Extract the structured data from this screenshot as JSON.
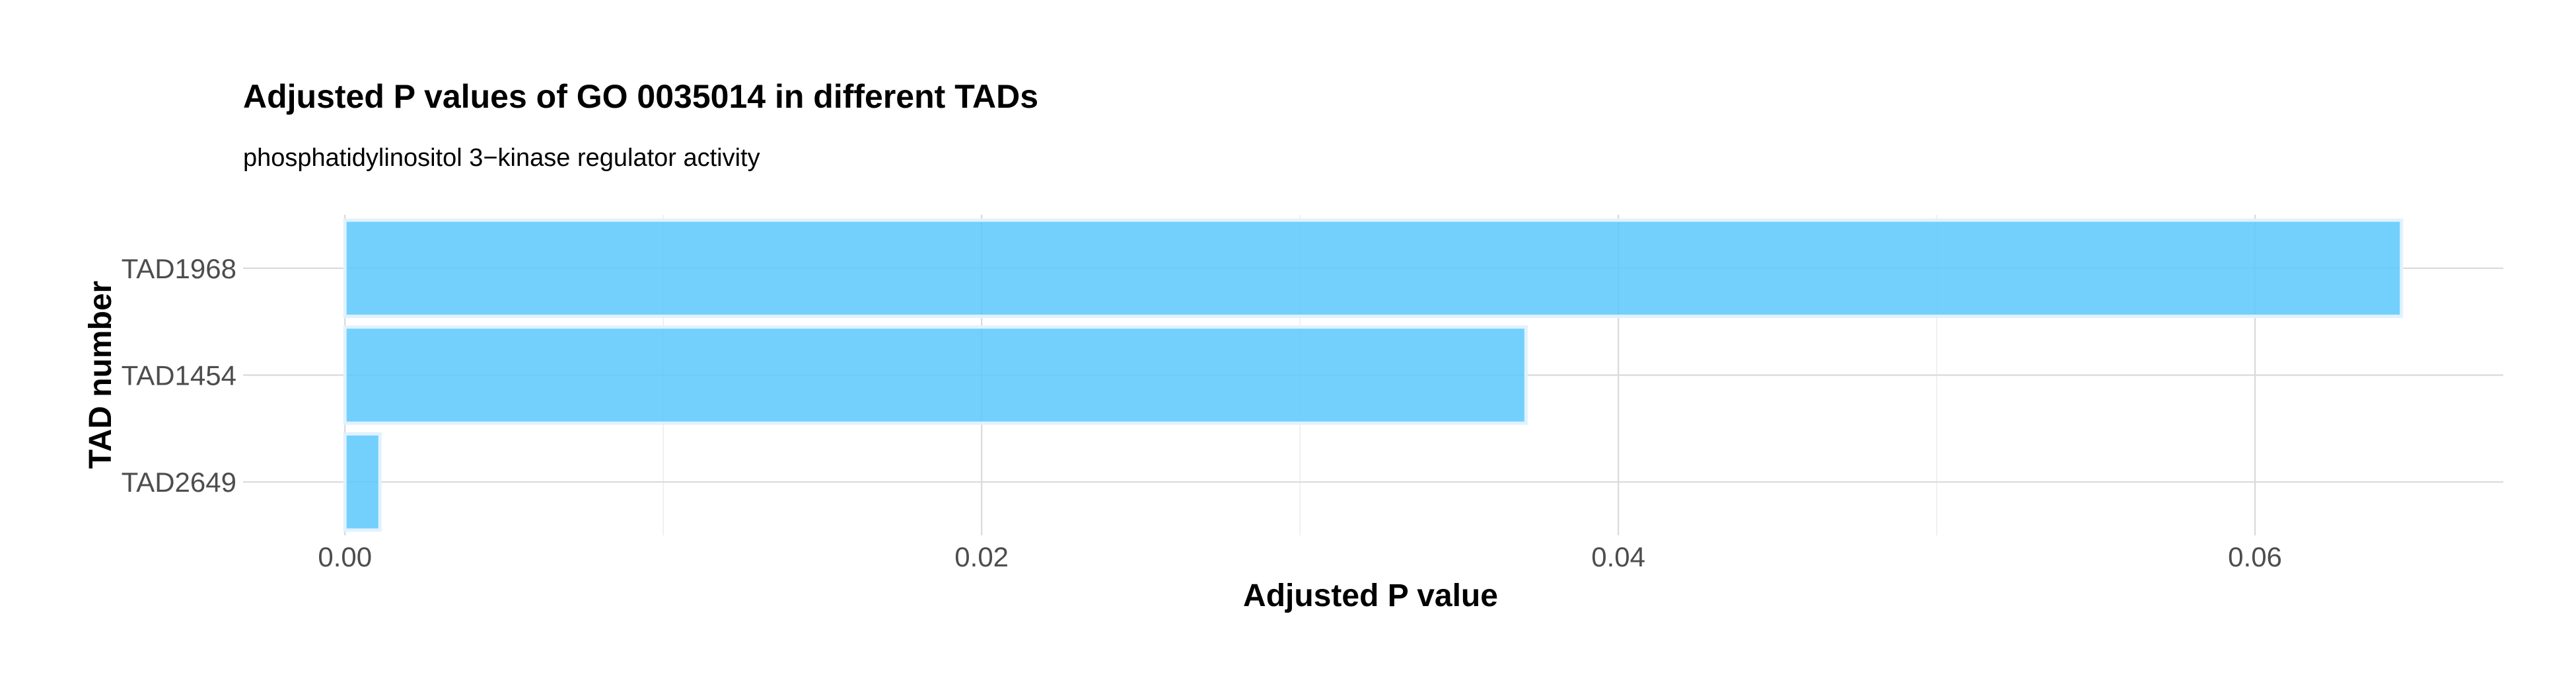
{
  "chart_data": {
    "type": "bar",
    "orientation": "horizontal",
    "title": "Adjusted P values of GO 0035014 in different TADs",
    "subtitle": "phosphatidylinositol 3−kinase regulator activity",
    "xlabel": "Adjusted P value",
    "ylabel": "TAD number",
    "categories": [
      "TAD1968",
      "TAD1454",
      "TAD2649"
    ],
    "values": [
      0.0646,
      0.0371,
      0.0011
    ],
    "xlim": [
      -0.0032,
      0.0678
    ],
    "x_ticks": [
      0.0,
      0.02,
      0.04,
      0.06
    ],
    "x_tick_labels": [
      "0.00",
      "0.02",
      "0.04",
      "0.06"
    ],
    "x_minor_ticks": [
      0.01,
      0.03,
      0.05
    ],
    "grid": true,
    "legend": "none",
    "bar_color": "#5bc8fb",
    "bar_outline_color": "#e0f2fd"
  }
}
